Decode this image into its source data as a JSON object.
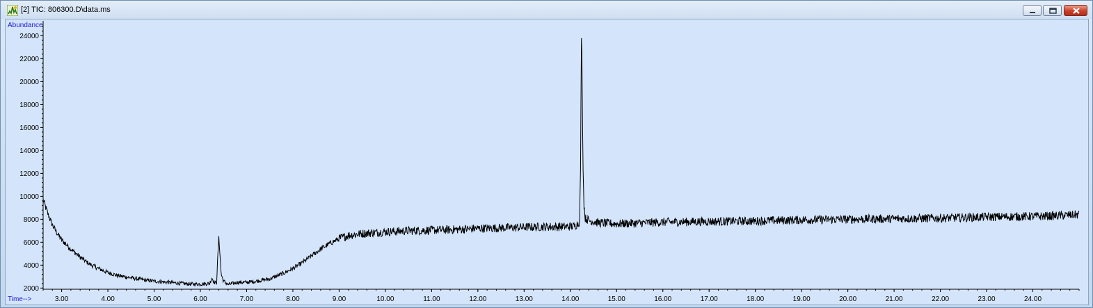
{
  "window": {
    "title": "[2] TIC: 806300.D\\data.ms"
  },
  "chart_data": {
    "type": "line",
    "ylabel": "Abundance",
    "xlabel": "Time-->",
    "xlim": [
      2.6,
      25.0
    ],
    "ylim": [
      1900,
      25300
    ],
    "x_ticks": [
      "3.00",
      "4.00",
      "5.00",
      "6.00",
      "7.00",
      "8.00",
      "9.00",
      "10.00",
      "11.00",
      "12.00",
      "13.00",
      "14.00",
      "15.00",
      "16.00",
      "17.00",
      "18.00",
      "19.00",
      "20.00",
      "21.00",
      "22.00",
      "23.00",
      "24.00"
    ],
    "y_ticks": [
      "2000",
      "4000",
      "6000",
      "8000",
      "10000",
      "12000",
      "14000",
      "16000",
      "18000",
      "20000",
      "22000",
      "24000"
    ],
    "grid": false,
    "series": [
      {
        "values": [
          [
            2.6,
            9700
          ],
          [
            2.7,
            8500
          ],
          [
            2.8,
            7500
          ],
          [
            2.9,
            6800
          ],
          [
            3.0,
            6200
          ],
          [
            3.2,
            5400
          ],
          [
            3.4,
            4700
          ],
          [
            3.6,
            4100
          ],
          [
            3.8,
            3700
          ],
          [
            4.0,
            3350
          ],
          [
            4.2,
            3100
          ],
          [
            4.5,
            2900
          ],
          [
            4.8,
            2700
          ],
          [
            5.0,
            2600
          ],
          [
            5.3,
            2500
          ],
          [
            5.6,
            2400
          ],
          [
            5.8,
            2350
          ],
          [
            6.0,
            2350
          ],
          [
            6.2,
            2400
          ],
          [
            6.25,
            2900
          ],
          [
            6.3,
            2500
          ],
          [
            6.35,
            2400
          ],
          [
            6.38,
            5000
          ],
          [
            6.4,
            6400
          ],
          [
            6.42,
            5200
          ],
          [
            6.45,
            3200
          ],
          [
            6.5,
            2600
          ],
          [
            6.6,
            2300
          ],
          [
            6.8,
            2500
          ],
          [
            7.0,
            2500
          ],
          [
            7.2,
            2600
          ],
          [
            7.5,
            2800
          ],
          [
            7.8,
            3300
          ],
          [
            8.0,
            3700
          ],
          [
            8.2,
            4200
          ],
          [
            8.4,
            4800
          ],
          [
            8.6,
            5400
          ],
          [
            8.8,
            5900
          ],
          [
            9.0,
            6300
          ],
          [
            9.2,
            6600
          ],
          [
            9.5,
            6750
          ],
          [
            9.8,
            6850
          ],
          [
            10.0,
            6900
          ],
          [
            10.5,
            7000
          ],
          [
            11.0,
            7050
          ],
          [
            11.5,
            7100
          ],
          [
            12.0,
            7200
          ],
          [
            12.5,
            7250
          ],
          [
            13.0,
            7300
          ],
          [
            13.5,
            7350
          ],
          [
            13.9,
            7350
          ],
          [
            14.1,
            7400
          ],
          [
            14.2,
            7800
          ],
          [
            14.22,
            12500
          ],
          [
            14.24,
            24600
          ],
          [
            14.25,
            22000
          ],
          [
            14.27,
            14000
          ],
          [
            14.29,
            9500
          ],
          [
            14.32,
            8100
          ],
          [
            14.4,
            7900
          ],
          [
            14.6,
            7700
          ],
          [
            15.0,
            7600
          ],
          [
            16.0,
            7750
          ],
          [
            17.0,
            7800
          ],
          [
            18.0,
            7850
          ],
          [
            19.0,
            7950
          ],
          [
            20.0,
            8000
          ],
          [
            21.0,
            8050
          ],
          [
            22.0,
            8100
          ],
          [
            23.0,
            8200
          ],
          [
            24.0,
            8250
          ],
          [
            24.5,
            8300
          ],
          [
            25.0,
            8400
          ]
        ]
      }
    ]
  }
}
